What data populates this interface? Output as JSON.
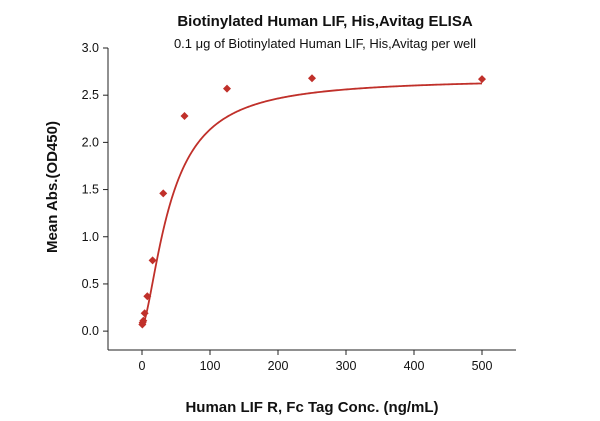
{
  "chart_data": {
    "type": "scatter",
    "title": "Biotinylated Human LIF, His,Avitag ELISA",
    "subtitle": "0.1 μg of Biotinylated Human LIF, His,Avitag per well",
    "xlabel": "Human LIF R, Fc Tag Conc. (ng/mL)",
    "ylabel": "Mean Abs.(OD450)",
    "xlim": [
      -50,
      550
    ],
    "ylim": [
      -0.2,
      3.0
    ],
    "x_ticks": [
      0,
      100,
      200,
      300,
      400,
      500
    ],
    "x_tick_labels": [
      "0",
      "100",
      "200",
      "300",
      "400",
      "500"
    ],
    "y_ticks": [
      0.0,
      0.5,
      1.0,
      1.5,
      2.0,
      2.5,
      3.0
    ],
    "y_tick_labels": [
      "0.0",
      "0.5",
      "1.0",
      "1.5",
      "2.0",
      "2.5",
      "3.0"
    ],
    "grid": false,
    "legend": "none",
    "series": [
      {
        "x": [
          0.49,
          0.98,
          1.95,
          3.9,
          7.8,
          15.6,
          31.25,
          62.5,
          125,
          250,
          500
        ],
        "y": [
          0.07,
          0.09,
          0.11,
          0.19,
          0.37,
          0.75,
          1.46,
          2.28,
          2.57,
          2.68,
          2.67
        ],
        "fit": {
          "model": "4PL",
          "bottom": 0.05,
          "top": 2.68,
          "ec50": 42,
          "hill": 1.55
        }
      }
    ],
    "colors": {
      "series": "#c0302a",
      "axes": "#222222",
      "text": "#111111"
    }
  }
}
